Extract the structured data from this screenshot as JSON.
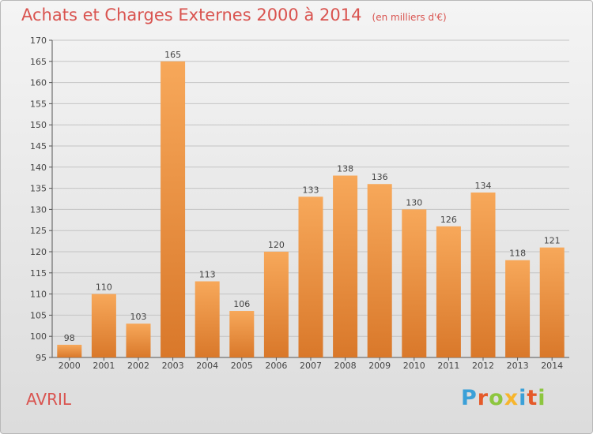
{
  "header": {
    "title": "Achats et Charges Externes 2000 à 2014",
    "subtitle": "(en milliers d'€)"
  },
  "commune": "AVRIL",
  "logo": {
    "text": "Proxiti",
    "colors": [
      "#3aa0d8",
      "#e55a2a",
      "#8dc63f",
      "#f7b52c",
      "#3aa0d8",
      "#e55a2a",
      "#8dc63f"
    ]
  },
  "chart_data": {
    "type": "bar",
    "title": "Achats et Charges Externes 2000 à 2014",
    "subtitle": "(en milliers d'€)",
    "categories": [
      "2000",
      "2001",
      "2002",
      "2003",
      "2004",
      "2005",
      "2006",
      "2007",
      "2008",
      "2009",
      "2010",
      "2011",
      "2012",
      "2013",
      "2014"
    ],
    "values": [
      98,
      110,
      103,
      165,
      113,
      106,
      120,
      133,
      138,
      136,
      130,
      126,
      134,
      118,
      121
    ],
    "ylim": [
      95,
      170
    ],
    "yticks": [
      95,
      100,
      105,
      110,
      115,
      120,
      125,
      130,
      135,
      140,
      145,
      150,
      155,
      160,
      165,
      170
    ],
    "grid": true,
    "bar_color_top": "#f7a85a",
    "bar_color_bottom": "#d9782a"
  }
}
